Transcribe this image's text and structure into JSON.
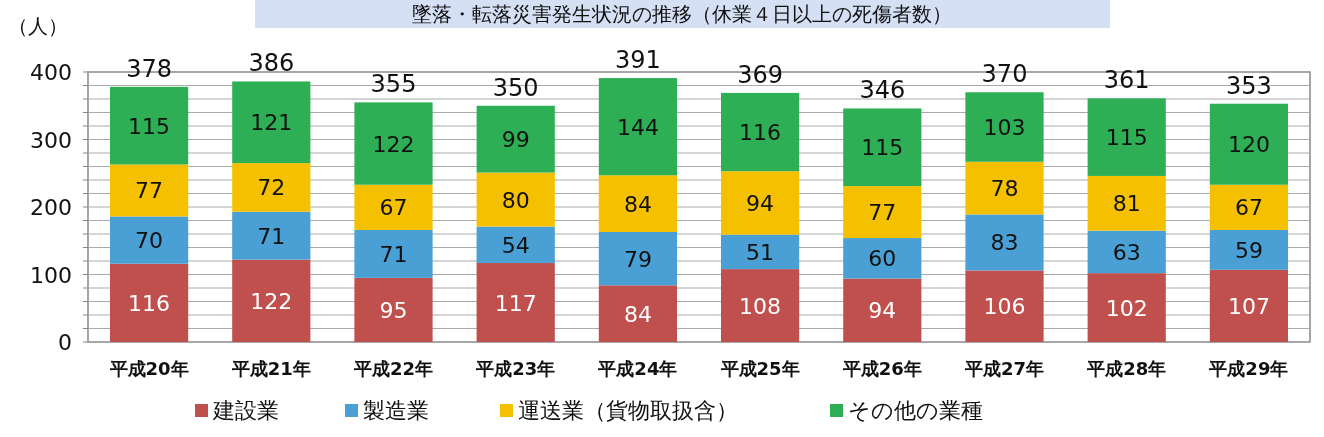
{
  "chart_data": {
    "type": "bar",
    "title": "墜落・転落災害発生状況の推移（休業４日以上の死傷者数）",
    "ylabel": "（人）",
    "stacked": true,
    "data_labels": true,
    "legend": "bottom",
    "grid": "y",
    "categories": [
      "平成20年",
      "平成21年",
      "平成22年",
      "平成23年",
      "平成24年",
      "平成25年",
      "平成26年",
      "平成27年",
      "平成28年",
      "平成29年"
    ],
    "ylim": [
      0,
      400
    ],
    "yticks": [
      0,
      {
        "value": 20,
        "label": null
      },
      {
        "value": 40,
        "label": null
      },
      {
        "value": 60,
        "label": null
      },
      {
        "value": 80,
        "label": null
      },
      100,
      {
        "value": 120,
        "label": null
      },
      {
        "value": 140,
        "label": null
      },
      {
        "value": 160,
        "label": null
      },
      {
        "value": 180,
        "label": null
      },
      200,
      {
        "value": 220,
        "label": null
      },
      {
        "value": 240,
        "label": null
      },
      {
        "value": 260,
        "label": null
      },
      {
        "value": 280,
        "label": null
      },
      300,
      {
        "value": 320,
        "label": null
      },
      {
        "value": 340,
        "label": null
      },
      {
        "value": 360,
        "label": null
      },
      {
        "value": 380,
        "label": null
      },
      400
    ],
    "series": [
      {
        "name": "建設業",
        "color": "#c0504d",
        "values": [
          116,
          122,
          95,
          117,
          84,
          108,
          94,
          106,
          102,
          107
        ]
      },
      {
        "name": "製造業",
        "color": "#4a9fd4",
        "values": [
          70,
          71,
          71,
          54,
          79,
          51,
          60,
          83,
          63,
          59
        ]
      },
      {
        "name": "運送業（貨物取扱含）",
        "color": "#f5c000",
        "values": [
          77,
          72,
          67,
          80,
          84,
          94,
          77,
          78,
          81,
          67
        ]
      },
      {
        "name": "その他の業種",
        "color": "#2eaf55",
        "values": [
          115,
          121,
          122,
          99,
          144,
          116,
          115,
          103,
          115,
          120
        ]
      }
    ],
    "totals": [
      "378",
      "386",
      "355",
      "350",
      "391",
      "369",
      "346",
      "370",
      "361",
      "353"
    ]
  }
}
